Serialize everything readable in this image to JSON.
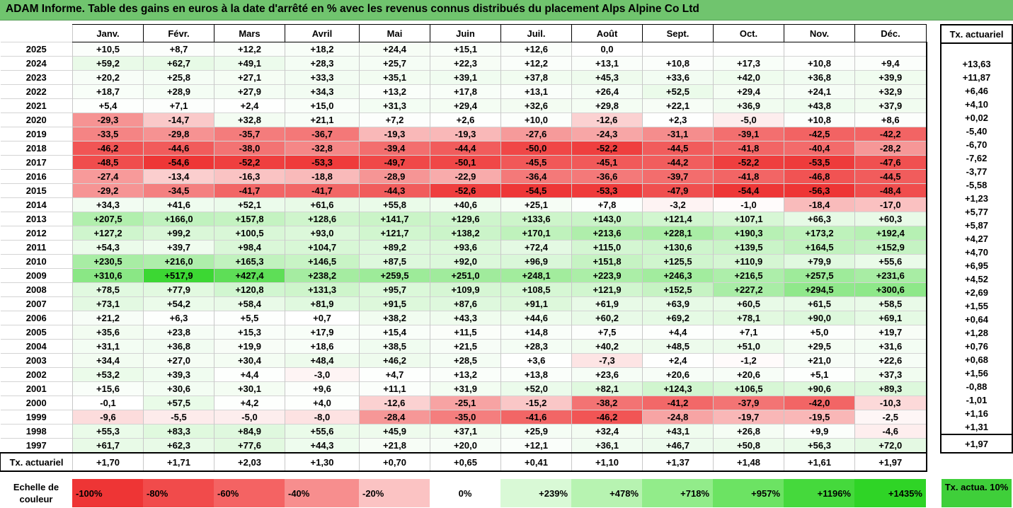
{
  "title": "ADAM Informe. Table des gains en euros à la date d'arrêté en % avec les revenus connus distribués du placement Alps Alpine Co Ltd",
  "months": [
    "Janv.",
    "Févr.",
    "Mars",
    "Avril",
    "Mai",
    "Juin",
    "Juil.",
    "Août",
    "Sept.",
    "Oct.",
    "Nov.",
    "Déc."
  ],
  "rate_header": "Tx. actuariel",
  "rows": [
    {
      "year": "2025",
      "cells": [
        "+10,5",
        "+8,7",
        "+12,2",
        "+18,2",
        "+24,4",
        "+15,1",
        "+12,6",
        "0,0",
        "",
        "",
        "",
        ""
      ],
      "rate": ""
    },
    {
      "year": "2024",
      "cells": [
        "+59,2",
        "+62,7",
        "+49,1",
        "+28,3",
        "+25,7",
        "+22,3",
        "+12,2",
        "+13,1",
        "+10,8",
        "+17,3",
        "+10,8",
        "+9,4"
      ],
      "rate": "+13,63"
    },
    {
      "year": "2023",
      "cells": [
        "+20,2",
        "+25,8",
        "+27,1",
        "+33,3",
        "+35,1",
        "+39,1",
        "+37,8",
        "+45,3",
        "+33,6",
        "+42,0",
        "+36,8",
        "+39,9"
      ],
      "rate": "+11,87"
    },
    {
      "year": "2022",
      "cells": [
        "+18,7",
        "+28,9",
        "+27,9",
        "+34,3",
        "+13,2",
        "+17,8",
        "+13,1",
        "+26,4",
        "+52,5",
        "+29,4",
        "+24,1",
        "+32,9"
      ],
      "rate": "+6,46"
    },
    {
      "year": "2021",
      "cells": [
        "+5,4",
        "+7,1",
        "+2,4",
        "+15,0",
        "+31,3",
        "+29,4",
        "+32,6",
        "+29,8",
        "+22,1",
        "+36,9",
        "+43,8",
        "+37,9"
      ],
      "rate": "+4,10"
    },
    {
      "year": "2020",
      "cells": [
        "-29,3",
        "-14,7",
        "+32,8",
        "+21,1",
        "+7,2",
        "+2,6",
        "+10,0",
        "-12,6",
        "+2,3",
        "-5,0",
        "+10,8",
        "+8,6"
      ],
      "rate": "+0,02"
    },
    {
      "year": "2019",
      "cells": [
        "-33,5",
        "-29,8",
        "-35,7",
        "-36,7",
        "-19,3",
        "-19,3",
        "-27,6",
        "-24,3",
        "-31,1",
        "-39,1",
        "-42,5",
        "-42,2"
      ],
      "rate": "-5,40"
    },
    {
      "year": "2018",
      "cells": [
        "-46,2",
        "-44,6",
        "-38,0",
        "-32,8",
        "-39,4",
        "-44,4",
        "-50,0",
        "-52,2",
        "-44,5",
        "-41,8",
        "-40,4",
        "-28,2"
      ],
      "rate": "-6,70"
    },
    {
      "year": "2017",
      "cells": [
        "-48,5",
        "-54,6",
        "-52,2",
        "-53,3",
        "-49,7",
        "-50,1",
        "-45,5",
        "-45,1",
        "-44,2",
        "-52,2",
        "-53,5",
        "-47,6"
      ],
      "rate": "-7,62"
    },
    {
      "year": "2016",
      "cells": [
        "-27,4",
        "-13,4",
        "-16,3",
        "-18,8",
        "-28,9",
        "-22,9",
        "-36,4",
        "-36,6",
        "-39,7",
        "-41,8",
        "-46,8",
        "-44,5"
      ],
      "rate": "-3,77"
    },
    {
      "year": "2015",
      "cells": [
        "-29,2",
        "-34,5",
        "-41,7",
        "-41,7",
        "-44,3",
        "-52,6",
        "-54,5",
        "-53,3",
        "-47,9",
        "-54,4",
        "-56,3",
        "-48,4"
      ],
      "rate": "-5,58"
    },
    {
      "year": "2014",
      "cells": [
        "+34,3",
        "+41,6",
        "+52,1",
        "+61,6",
        "+55,8",
        "+40,6",
        "+25,1",
        "+7,8",
        "-3,2",
        "-1,0",
        "-18,4",
        "-17,0"
      ],
      "rate": "+1,23"
    },
    {
      "year": "2013",
      "cells": [
        "+207,5",
        "+166,0",
        "+157,8",
        "+128,6",
        "+141,7",
        "+129,6",
        "+133,6",
        "+143,0",
        "+121,4",
        "+107,1",
        "+66,3",
        "+60,3"
      ],
      "rate": "+5,77"
    },
    {
      "year": "2012",
      "cells": [
        "+127,2",
        "+99,2",
        "+100,5",
        "+93,0",
        "+121,7",
        "+138,2",
        "+170,1",
        "+213,6",
        "+228,1",
        "+190,3",
        "+173,2",
        "+192,4"
      ],
      "rate": "+5,87"
    },
    {
      "year": "2011",
      "cells": [
        "+54,3",
        "+39,7",
        "+98,4",
        "+104,7",
        "+89,2",
        "+93,6",
        "+72,4",
        "+115,0",
        "+130,6",
        "+139,5",
        "+164,5",
        "+152,9"
      ],
      "rate": "+4,27"
    },
    {
      "year": "2010",
      "cells": [
        "+230,5",
        "+216,0",
        "+165,3",
        "+146,5",
        "+87,5",
        "+92,0",
        "+96,9",
        "+151,8",
        "+125,5",
        "+110,9",
        "+79,9",
        "+55,6"
      ],
      "rate": "+4,70"
    },
    {
      "year": "2009",
      "cells": [
        "+310,6",
        "+517,9",
        "+427,4",
        "+238,2",
        "+259,5",
        "+251,0",
        "+248,1",
        "+223,9",
        "+246,3",
        "+216,5",
        "+257,5",
        "+231,6"
      ],
      "rate": "+6,95"
    },
    {
      "year": "2008",
      "cells": [
        "+78,5",
        "+77,9",
        "+120,8",
        "+131,3",
        "+95,7",
        "+109,9",
        "+108,5",
        "+121,9",
        "+152,5",
        "+227,2",
        "+294,5",
        "+300,6"
      ],
      "rate": "+4,52"
    },
    {
      "year": "2007",
      "cells": [
        "+73,1",
        "+54,2",
        "+58,4",
        "+81,9",
        "+91,5",
        "+87,6",
        "+91,1",
        "+61,9",
        "+63,9",
        "+60,5",
        "+61,5",
        "+58,5"
      ],
      "rate": "+2,69"
    },
    {
      "year": "2006",
      "cells": [
        "+21,2",
        "+6,3",
        "+5,5",
        "+0,7",
        "+38,2",
        "+43,3",
        "+44,6",
        "+60,2",
        "+69,2",
        "+78,1",
        "+90,0",
        "+69,1"
      ],
      "rate": "+1,55"
    },
    {
      "year": "2005",
      "cells": [
        "+35,6",
        "+23,8",
        "+15,3",
        "+17,9",
        "+15,4",
        "+11,5",
        "+14,8",
        "+7,5",
        "+4,4",
        "+7,1",
        "+5,0",
        "+19,7"
      ],
      "rate": "+0,64"
    },
    {
      "year": "2004",
      "cells": [
        "+31,1",
        "+36,8",
        "+19,9",
        "+18,6",
        "+38,5",
        "+21,5",
        "+28,3",
        "+40,2",
        "+48,5",
        "+51,0",
        "+29,5",
        "+31,6"
      ],
      "rate": "+1,28"
    },
    {
      "year": "2003",
      "cells": [
        "+34,4",
        "+27,0",
        "+30,4",
        "+48,4",
        "+46,2",
        "+28,5",
        "+3,6",
        "-7,3",
        "+2,4",
        "-1,2",
        "+21,0",
        "+22,6"
      ],
      "rate": "+0,76"
    },
    {
      "year": "2002",
      "cells": [
        "+53,2",
        "+39,3",
        "+4,4",
        "-3,0",
        "+4,7",
        "+13,2",
        "+13,8",
        "+23,6",
        "+20,6",
        "+20,6",
        "+5,1",
        "+37,3"
      ],
      "rate": "+0,68"
    },
    {
      "year": "2001",
      "cells": [
        "+15,6",
        "+30,6",
        "+30,1",
        "+9,6",
        "+11,1",
        "+31,9",
        "+52,0",
        "+82,1",
        "+124,3",
        "+106,5",
        "+90,6",
        "+89,3"
      ],
      "rate": "+1,56"
    },
    {
      "year": "2000",
      "cells": [
        "-0,1",
        "+57,5",
        "+4,2",
        "+4,0",
        "-12,6",
        "-25,1",
        "-15,2",
        "-38,2",
        "-41,2",
        "-37,9",
        "-42,0",
        "-10,3"
      ],
      "rate": "-0,88"
    },
    {
      "year": "1999",
      "cells": [
        "-9,6",
        "-5,5",
        "-5,0",
        "-8,0",
        "-28,4",
        "-35,0",
        "-41,6",
        "-46,2",
        "-24,8",
        "-19,7",
        "-19,5",
        "-2,5"
      ],
      "rate": "-1,01"
    },
    {
      "year": "1998",
      "cells": [
        "+55,3",
        "+83,3",
        "+84,9",
        "+55,6",
        "+45,9",
        "+37,1",
        "+25,9",
        "+32,4",
        "+43,1",
        "+26,8",
        "+9,9",
        "-4,6"
      ],
      "rate": "+1,16"
    },
    {
      "year": "1997",
      "cells": [
        "+61,7",
        "+62,3",
        "+77,6",
        "+44,3",
        "+21,8",
        "+20,0",
        "+12,1",
        "+36,1",
        "+46,7",
        "+50,8",
        "+56,3",
        "+72,0"
      ],
      "rate": "+1,31"
    }
  ],
  "summary": {
    "label": "Tx. actuariel",
    "cells": [
      "+1,70",
      "+1,71",
      "+2,03",
      "+1,30",
      "+0,70",
      "+0,65",
      "+0,41",
      "+1,10",
      "+1,37",
      "+1,48",
      "+1,61",
      "+1,97"
    ],
    "rate": "+1,97"
  },
  "legend": {
    "label": "Echelle de couleur",
    "steps": [
      {
        "text": "-100%",
        "color": "#ee3535",
        "align": "left"
      },
      {
        "text": "-80%",
        "color": "#f14b4b",
        "align": "left"
      },
      {
        "text": "-60%",
        "color": "#f46363",
        "align": "left"
      },
      {
        "text": "-40%",
        "color": "#f78e8e",
        "align": "left"
      },
      {
        "text": "-20%",
        "color": "#fbc3c3",
        "align": "left"
      },
      {
        "text": "0%",
        "color": "#ffffff",
        "align": "center"
      },
      {
        "text": "+239%",
        "color": "#d9f9d6",
        "align": "right"
      },
      {
        "text": "+478%",
        "color": "#b7f3b1",
        "align": "right"
      },
      {
        "text": "+718%",
        "color": "#92ec8a",
        "align": "right"
      },
      {
        "text": "+957%",
        "color": "#6ce363",
        "align": "right"
      },
      {
        "text": "+1196%",
        "color": "#45d93c",
        "align": "right"
      },
      {
        "text": "+1435%",
        "color": "#2fd426",
        "align": "right"
      }
    ],
    "rate_label": "Tx. actua. 10%"
  },
  "colors": {
    "title_bg": "#70c46e",
    "negative_max": "#ee3535",
    "positive_max": "#2fd426",
    "rate_legend": "#3fcf3a"
  }
}
